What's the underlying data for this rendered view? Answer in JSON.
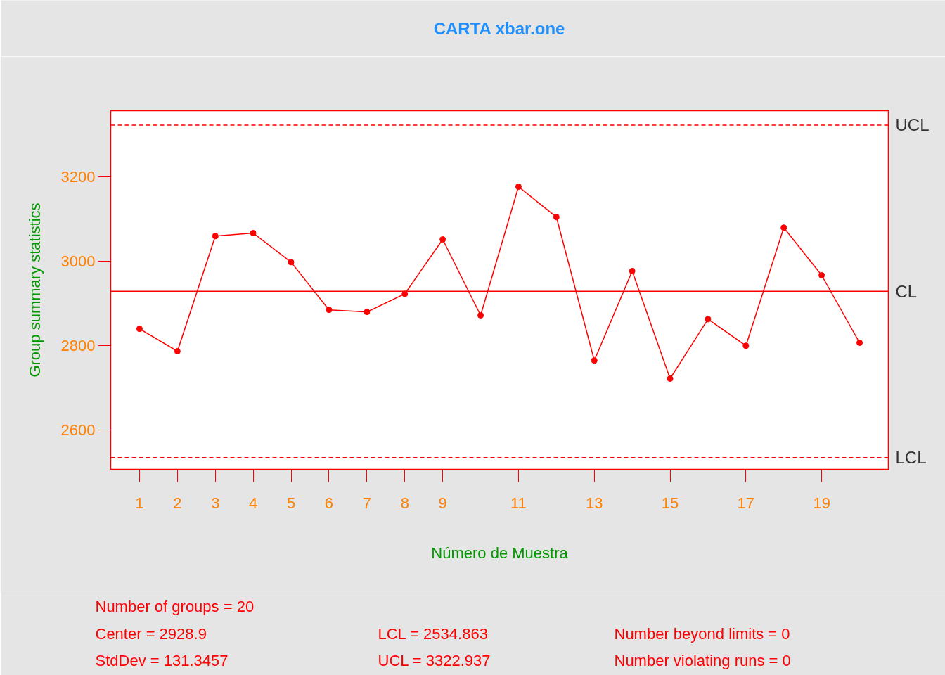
{
  "chart_data": {
    "type": "line",
    "title": "CARTA xbar.one",
    "xlabel": "Número de Muestra",
    "ylabel": "Group summary statistics",
    "x": [
      1,
      2,
      3,
      4,
      5,
      6,
      7,
      8,
      9,
      10,
      11,
      12,
      13,
      14,
      15,
      16,
      17,
      18,
      19,
      20
    ],
    "series": [
      {
        "color": "#ff0000",
        "values": [
          2840,
          2787,
          3060,
          3067,
          2998,
          2885,
          2880,
          2923,
          3052,
          2872,
          3177,
          3105,
          2765,
          2977,
          2722,
          2863,
          2800,
          3080,
          2967,
          2807
        ]
      }
    ],
    "marker": "circle",
    "line_style": "solid",
    "grid": false,
    "xlim": [
      0.24,
      20.76
    ],
    "ylim": [
      2507,
      3357
    ],
    "xticks": [
      1,
      2,
      3,
      4,
      5,
      6,
      7,
      8,
      9,
      11,
      13,
      15,
      17,
      19
    ],
    "yticks": [
      2600,
      2800,
      3000,
      3200
    ],
    "ref_lines": [
      {
        "axis": "y",
        "value": 3322.937,
        "label": "UCL",
        "color": "#ff0000",
        "line_style": "dashed"
      },
      {
        "axis": "y",
        "value": 2928.9,
        "label": "CL",
        "color": "#ff0000",
        "line_style": "solid"
      },
      {
        "axis": "y",
        "value": 2534.863,
        "label": "LCL",
        "color": "#ff0000",
        "line_style": "dashed"
      }
    ],
    "annotations": [
      "Number of groups = 20",
      "Center = 2928.9",
      "StdDev = 131.3457",
      "LCL = 2534.863",
      "UCL = 3322.937",
      "Number beyond limits = 0",
      "Number violating runs = 0"
    ]
  }
}
